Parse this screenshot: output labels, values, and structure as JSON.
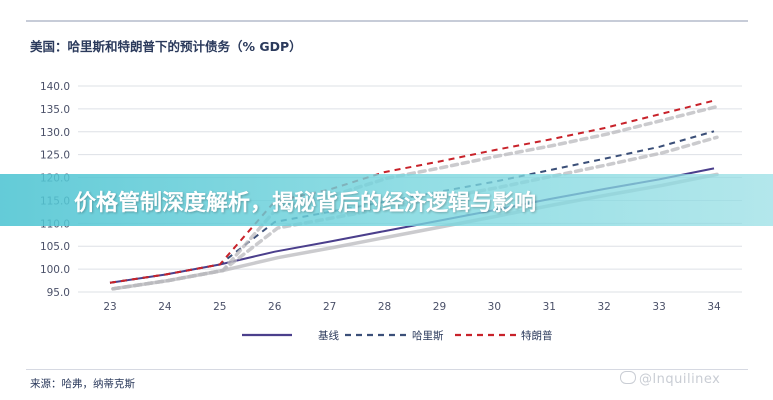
{
  "header": {
    "title": "美国：哈里斯和特朗普下的预计债务（% GDP）"
  },
  "banner": {
    "text": "价格管制深度解析，揭秘背后的经济逻辑与影响"
  },
  "footer": {
    "source": "来源：哈弗，纳蒂克斯",
    "watermark": "@lnquilinex"
  },
  "colors": {
    "baseline": "#4b3f8c",
    "harris": "#3b4f78",
    "trump": "#c8222a",
    "grid": "#dde0e6",
    "shadow": "#b9b9bd"
  },
  "chart_data": {
    "type": "line",
    "title": "美国：哈里斯和特朗普下的预计债务（% GDP）",
    "x": [
      23,
      24,
      25,
      26,
      27,
      28,
      29,
      30,
      31,
      32,
      33,
      34
    ],
    "x_ticks": [
      "23",
      "24",
      "25",
      "26",
      "27",
      "28",
      "29",
      "30",
      "31",
      "32",
      "33",
      "34"
    ],
    "y_ticks": [
      "95.0",
      "100.0",
      "105.0",
      "110.0",
      "115.0",
      "120.0",
      "125.0",
      "130.0",
      "135.0",
      "140.0"
    ],
    "ylim": [
      95,
      140
    ],
    "grid": true,
    "legend_position": "bottom",
    "series": [
      {
        "name": "基线",
        "style": "solid",
        "values": [
          97.0,
          98.8,
          101.0,
          103.8,
          106.0,
          108.3,
          110.6,
          112.9,
          115.3,
          117.5,
          119.6,
          122.0
        ]
      },
      {
        "name": "哈里斯",
        "style": "dashed",
        "values": [
          97.0,
          98.8,
          101.0,
          110.3,
          112.5,
          114.7,
          116.9,
          119.1,
          121.6,
          124.1,
          126.7,
          130.1
        ]
      },
      {
        "name": "特朗普",
        "style": "dashed",
        "values": [
          97.0,
          98.8,
          101.0,
          114.8,
          117.4,
          121.2,
          123.5,
          126.0,
          128.3,
          130.8,
          133.8,
          136.8
        ]
      }
    ]
  }
}
